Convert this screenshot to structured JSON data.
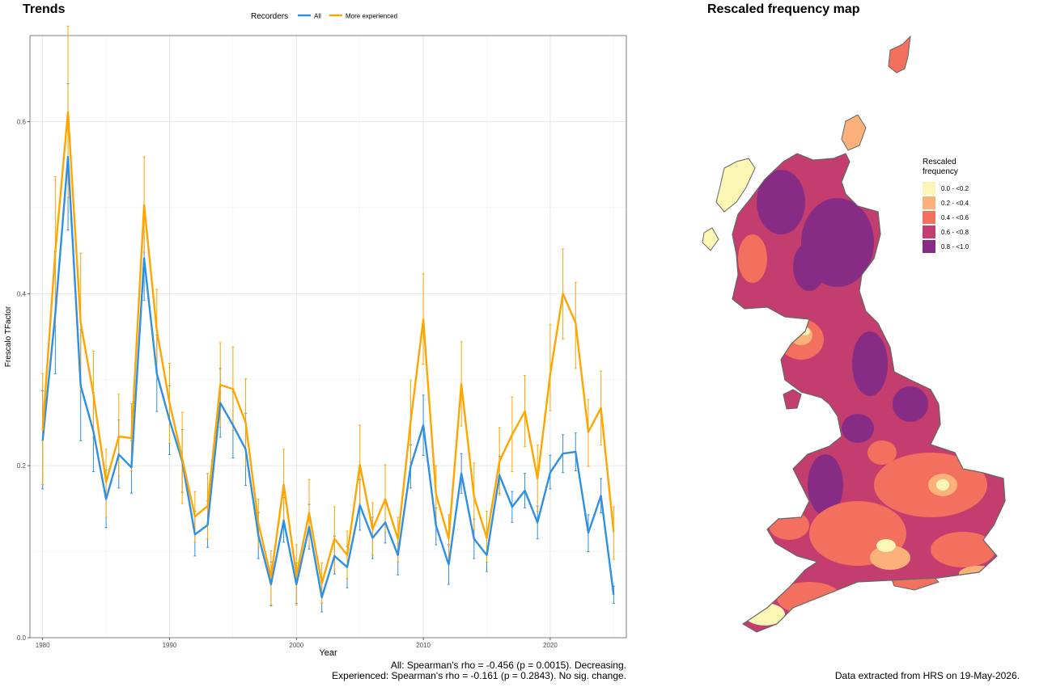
{
  "trends": {
    "title": "Trends",
    "stats_all": "All: Spearman's rho = -0.456 (p = 0.0015). Decreasing.",
    "stats_experienced": "Experienced: Spearman's rho = -0.161 (p = 0.2843). No sig. change."
  },
  "map": {
    "title": "Rescaled frequency map",
    "legend_title": "Rescaled frequency",
    "legend_title_line1": "Rescaled",
    "legend_title_line2": "frequency",
    "legend_items": [
      {
        "label": "0.0 - <0.2",
        "color": "#fcf6b4"
      },
      {
        "label": "0.2 - <0.4",
        "color": "#fcb07a"
      },
      {
        "label": "0.4 - <0.6",
        "color": "#f3705f"
      },
      {
        "label": "0.6 - <0.8",
        "color": "#c33d6e"
      },
      {
        "label": "0.8 - <1.0",
        "color": "#872c84"
      }
    ],
    "footer": "Data extracted from HRS on 19-May-2026."
  },
  "chart_data": {
    "type": "line",
    "xlabel": "Year",
    "ylabel": "Frescalo TFactor",
    "xlim": [
      1979,
      2026
    ],
    "ylim": [
      0,
      0.7
    ],
    "xticks": [
      1980,
      1990,
      2000,
      2010,
      2020
    ],
    "yticks": [
      0.0,
      0.2,
      0.4,
      0.6
    ],
    "grid": true,
    "legend_title": "Recorders",
    "legend_position": "top",
    "x": [
      1980,
      1981,
      1982,
      1983,
      1984,
      1985,
      1986,
      1987,
      1988,
      1989,
      1990,
      1991,
      1992,
      1993,
      1994,
      1995,
      1996,
      1997,
      1998,
      1999,
      2000,
      2001,
      2002,
      2003,
      2004,
      2005,
      2006,
      2007,
      2008,
      2009,
      2010,
      2011,
      2012,
      2013,
      2014,
      2015,
      2016,
      2017,
      2018,
      2019,
      2020,
      2021,
      2022,
      2023,
      2024,
      2025
    ],
    "series": [
      {
        "name": "All",
        "color": "#2f8fe0",
        "values": [
          0.229,
          0.377,
          0.559,
          0.293,
          0.24,
          0.161,
          0.213,
          0.198,
          0.441,
          0.307,
          0.253,
          0.205,
          0.12,
          0.131,
          0.273,
          0.247,
          0.219,
          0.119,
          0.062,
          0.136,
          0.062,
          0.129,
          0.047,
          0.095,
          0.082,
          0.154,
          0.116,
          0.134,
          0.096,
          0.199,
          0.247,
          0.13,
          0.085,
          0.191,
          0.115,
          0.096,
          0.189,
          0.152,
          0.171,
          0.134,
          0.192,
          0.214,
          0.216,
          0.122,
          0.165,
          0.05
        ],
        "lower": [
          0.173,
          0.307,
          0.474,
          0.229,
          0.193,
          0.128,
          0.174,
          0.168,
          0.392,
          0.263,
          0.213,
          0.169,
          0.095,
          0.105,
          0.233,
          0.209,
          0.177,
          0.092,
          0.037,
          0.111,
          0.04,
          0.103,
          0.03,
          0.074,
          0.058,
          0.125,
          0.092,
          0.11,
          0.073,
          0.174,
          0.212,
          0.108,
          0.062,
          0.168,
          0.092,
          0.077,
          0.168,
          0.134,
          0.151,
          0.115,
          0.173,
          0.192,
          0.194,
          0.1,
          0.145,
          0.04
        ],
        "upper": [
          0.287,
          0.449,
          0.644,
          0.358,
          0.285,
          0.195,
          0.253,
          0.229,
          0.492,
          0.352,
          0.293,
          0.242,
          0.147,
          0.159,
          0.313,
          0.286,
          0.261,
          0.146,
          0.088,
          0.163,
          0.087,
          0.155,
          0.065,
          0.118,
          0.106,
          0.184,
          0.14,
          0.159,
          0.12,
          0.224,
          0.282,
          0.151,
          0.108,
          0.214,
          0.138,
          0.116,
          0.211,
          0.17,
          0.191,
          0.153,
          0.212,
          0.236,
          0.238,
          0.143,
          0.185,
          0.06
        ]
      },
      {
        "name": "More experienced",
        "color": "#ffa500",
        "values": [
          0.241,
          0.449,
          0.611,
          0.366,
          0.283,
          0.181,
          0.234,
          0.232,
          0.503,
          0.357,
          0.273,
          0.208,
          0.141,
          0.153,
          0.294,
          0.289,
          0.25,
          0.133,
          0.07,
          0.178,
          0.072,
          0.145,
          0.063,
          0.115,
          0.096,
          0.201,
          0.126,
          0.161,
          0.115,
          0.251,
          0.37,
          0.167,
          0.115,
          0.295,
          0.164,
          0.116,
          0.205,
          0.236,
          0.263,
          0.185,
          0.306,
          0.4,
          0.366,
          0.239,
          0.267,
          0.123
        ],
        "lower": [
          0.178,
          0.362,
          0.512,
          0.287,
          0.233,
          0.14,
          0.188,
          0.194,
          0.448,
          0.31,
          0.226,
          0.156,
          0.111,
          0.115,
          0.245,
          0.241,
          0.2,
          0.105,
          0.038,
          0.137,
          0.038,
          0.107,
          0.04,
          0.078,
          0.069,
          0.156,
          0.096,
          0.123,
          0.088,
          0.204,
          0.318,
          0.134,
          0.088,
          0.246,
          0.125,
          0.088,
          0.166,
          0.193,
          0.222,
          0.147,
          0.264,
          0.347,
          0.313,
          0.199,
          0.224,
          0.091
        ],
        "upper": [
          0.307,
          0.536,
          0.711,
          0.447,
          0.333,
          0.219,
          0.283,
          0.272,
          0.559,
          0.405,
          0.319,
          0.262,
          0.17,
          0.191,
          0.343,
          0.338,
          0.301,
          0.161,
          0.101,
          0.219,
          0.108,
          0.184,
          0.087,
          0.152,
          0.124,
          0.247,
          0.157,
          0.201,
          0.14,
          0.299,
          0.423,
          0.2,
          0.143,
          0.344,
          0.203,
          0.147,
          0.244,
          0.28,
          0.305,
          0.224,
          0.364,
          0.452,
          0.413,
          0.277,
          0.31,
          0.152
        ]
      }
    ]
  }
}
